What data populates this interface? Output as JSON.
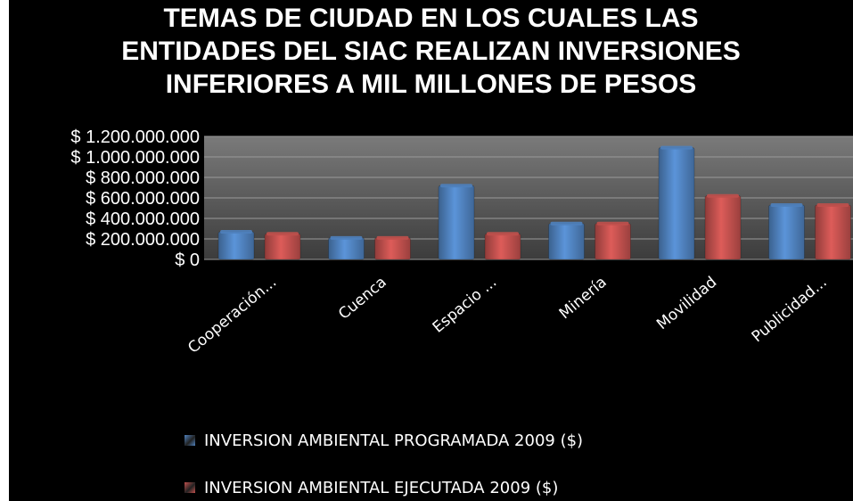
{
  "chart_data": {
    "type": "bar",
    "title": "TEMAS DE CIUDAD EN LOS CUALES LAS\nENTIDADES DEL SIAC REALIZAN INVERSIONES\nINFERIORES A MIL MILLONES DE PESOS",
    "categories": [
      "Cooperación...",
      "Cuenca",
      "Espacio ...",
      "Minería",
      "Movilidad",
      "Publicidad..."
    ],
    "series": [
      {
        "name": "INVERSION AMBIENTAL PROGRAMADA 2009 ($)",
        "color": "#4f81bd",
        "values": [
          270000000,
          210000000,
          720000000,
          350000000,
          1090000000,
          530000000
        ]
      },
      {
        "name": "INVERSION AMBIENTAL EJECUTADA 2009 ($)",
        "color": "#c0504d",
        "values": [
          250000000,
          210000000,
          250000000,
          350000000,
          620000000,
          530000000
        ]
      }
    ],
    "yticks": [
      "$ 0",
      "$ 200.000.000",
      "$ 400.000.000",
      "$ 600.000.000",
      "$ 800.000.000",
      "$ 1.000.000.000",
      "$ 1.200.000.000"
    ],
    "ylim": [
      0,
      1200000000
    ],
    "xlabel": "",
    "ylabel": "",
    "grid": true,
    "legend_position": "bottom"
  }
}
